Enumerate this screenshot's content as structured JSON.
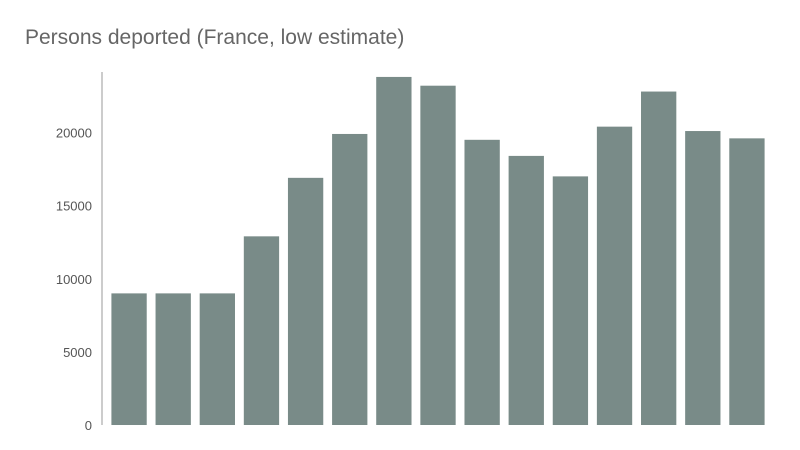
{
  "chart_data": {
    "type": "bar",
    "title": "Persons deported (France, low estimate)",
    "xlabel": "",
    "ylabel": "",
    "categories": [
      "",
      "",
      "",
      "",
      "",
      "",
      "",
      "",
      "",
      "",
      "",
      "",
      "",
      "",
      ""
    ],
    "values": [
      9000,
      9000,
      9000,
      12900,
      16900,
      19900,
      23800,
      23200,
      19500,
      18400,
      17000,
      20400,
      22800,
      20100,
      19600
    ],
    "ylim": [
      0,
      24000
    ],
    "yticks": [
      "0",
      "5000",
      "10000",
      "15000",
      "20000"
    ],
    "bar_color": "#798b88",
    "axis_color": "#bbbbbb",
    "grid": false,
    "legend": "none"
  }
}
